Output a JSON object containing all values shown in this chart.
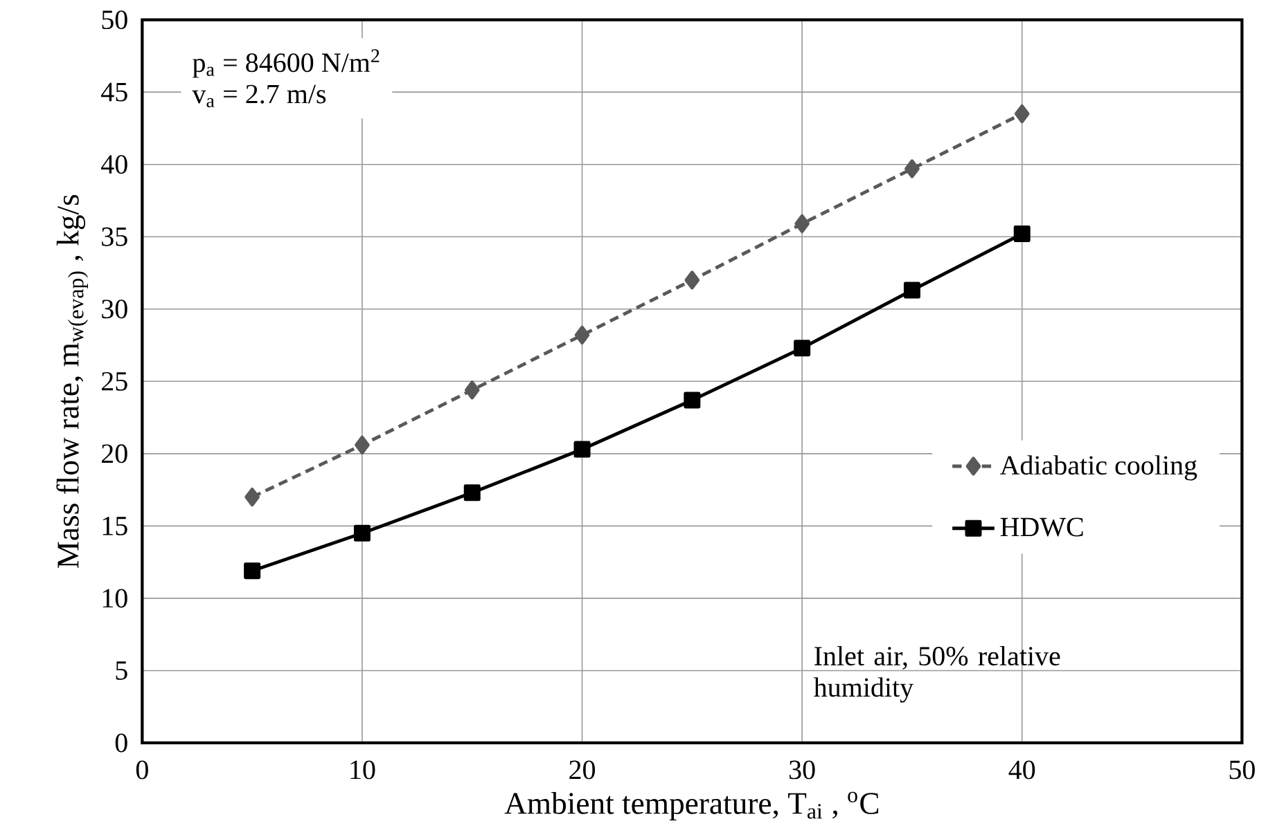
{
  "chart_data": {
    "type": "line",
    "xlabel": "Ambient temperature, T$_{ai}$ , $^{o}$C",
    "ylabel": "Mass flow rate, m$_{w(evap)}$ , kg/s",
    "x": [
      5,
      10,
      15,
      20,
      25,
      30,
      35,
      40
    ],
    "series": [
      {
        "name": "Adiabatic cooling",
        "color": "#595959",
        "marker": "diamond",
        "line_style": "dashed",
        "values": [
          17.0,
          20.6,
          24.4,
          28.2,
          32.0,
          35.9,
          39.7,
          43.5
        ]
      },
      {
        "name": "HDWC",
        "color": "#000000",
        "marker": "square",
        "line_style": "solid",
        "values": [
          11.9,
          14.5,
          17.3,
          20.3,
          23.7,
          27.3,
          31.3,
          35.2
        ]
      }
    ],
    "xlim": [
      0,
      50
    ],
    "ylim": [
      0,
      50
    ],
    "xticks": [
      0,
      10,
      20,
      30,
      40,
      50
    ],
    "yticks": [
      0,
      5,
      10,
      15,
      20,
      25,
      30,
      35,
      40,
      45,
      50
    ],
    "grid": true,
    "legend": "right",
    "annotations": [
      "p$_{a}$ = 84600 N/m$^{2}$",
      "v$_{a}$ = 2.7 m/s",
      "Inlet air, 50% relative humidity"
    ]
  }
}
